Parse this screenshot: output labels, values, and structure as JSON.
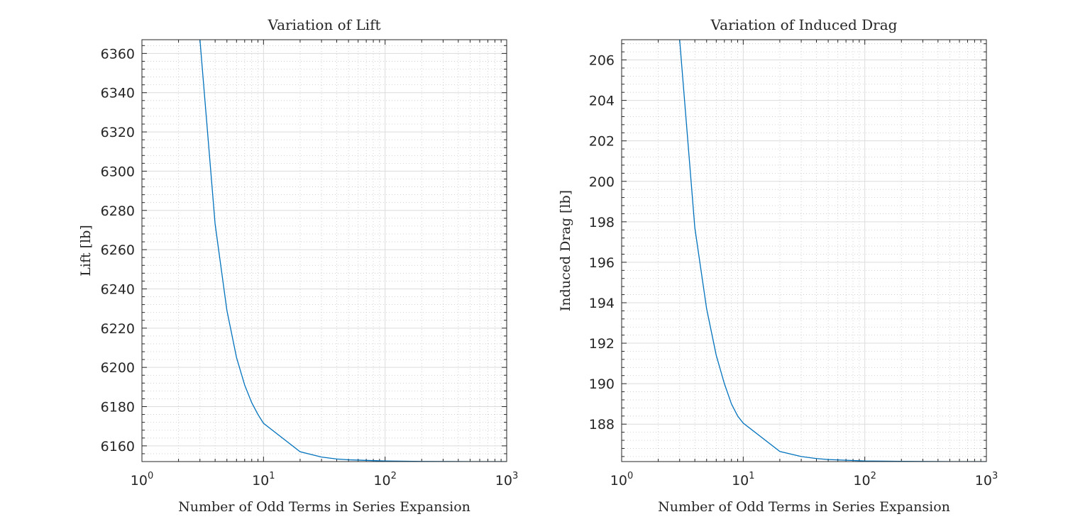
{
  "chart_data": [
    {
      "type": "line",
      "title": "Variation of Lift",
      "xlabel": "Number of Odd Terms in Series Expansion",
      "ylabel": "Lift [lb]",
      "xscale": "log",
      "xlim": [
        1,
        1000
      ],
      "ylim": [
        6152,
        6367
      ],
      "xticks": [
        1,
        10,
        100,
        1000
      ],
      "xtick_labels": [
        {
          "base": "10",
          "exp": "0"
        },
        {
          "base": "10",
          "exp": "1"
        },
        {
          "base": "10",
          "exp": "2"
        },
        {
          "base": "10",
          "exp": "3"
        }
      ],
      "yticks": [
        6160,
        6180,
        6200,
        6220,
        6240,
        6260,
        6280,
        6300,
        6320,
        6340,
        6360
      ],
      "ytick_labels": [
        "6160",
        "6180",
        "6200",
        "6220",
        "6240",
        "6260",
        "6280",
        "6300",
        "6320",
        "6340",
        "6360"
      ],
      "grid": true,
      "minor_grid": true,
      "series": [
        {
          "color": "#0072bd",
          "x": [
            3,
            4,
            5,
            6,
            7,
            8,
            9,
            10,
            20,
            30,
            40,
            50,
            100,
            200,
            500,
            1000
          ],
          "y": [
            6367,
            6273,
            6229,
            6205,
            6191,
            6182,
            6176,
            6171.5,
            6157,
            6154.3,
            6153.3,
            6152.9,
            6152.3,
            6152.1,
            6152.0,
            6152.0
          ]
        }
      ]
    },
    {
      "type": "line",
      "title": "Variation of Induced Drag",
      "xlabel": "Number of Odd Terms in Series Expansion",
      "ylabel": "Induced Drag [lb]",
      "xscale": "log",
      "xlim": [
        1,
        1000
      ],
      "ylim": [
        186.15,
        207
      ],
      "xticks": [
        1,
        10,
        100,
        1000
      ],
      "xtick_labels": [
        {
          "base": "10",
          "exp": "0"
        },
        {
          "base": "10",
          "exp": "1"
        },
        {
          "base": "10",
          "exp": "2"
        },
        {
          "base": "10",
          "exp": "3"
        }
      ],
      "yticks": [
        188,
        190,
        192,
        194,
        196,
        198,
        200,
        202,
        204,
        206
      ],
      "ytick_labels": [
        "188",
        "190",
        "192",
        "194",
        "196",
        "198",
        "200",
        "202",
        "204",
        "206"
      ],
      "grid": true,
      "minor_grid": true,
      "series": [
        {
          "color": "#0072bd",
          "x": [
            3,
            4,
            5,
            6,
            7,
            8,
            9,
            10,
            20,
            30,
            40,
            50,
            100,
            200,
            500,
            1000
          ],
          "y": [
            207,
            197.7,
            193.7,
            191.4,
            190.0,
            189.0,
            188.4,
            188.05,
            186.65,
            186.4,
            186.3,
            186.25,
            186.18,
            186.16,
            186.15,
            186.15
          ]
        }
      ]
    }
  ]
}
